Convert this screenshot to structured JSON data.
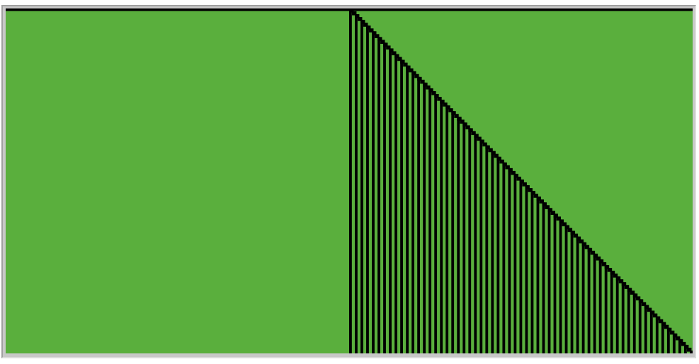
{
  "automaton": {
    "background_color": "#5aaf3d",
    "cell_color": "#000000",
    "frame_color": "#c8c8c8",
    "columns": 242,
    "generations": 121,
    "initial_cell_column": 121
  }
}
